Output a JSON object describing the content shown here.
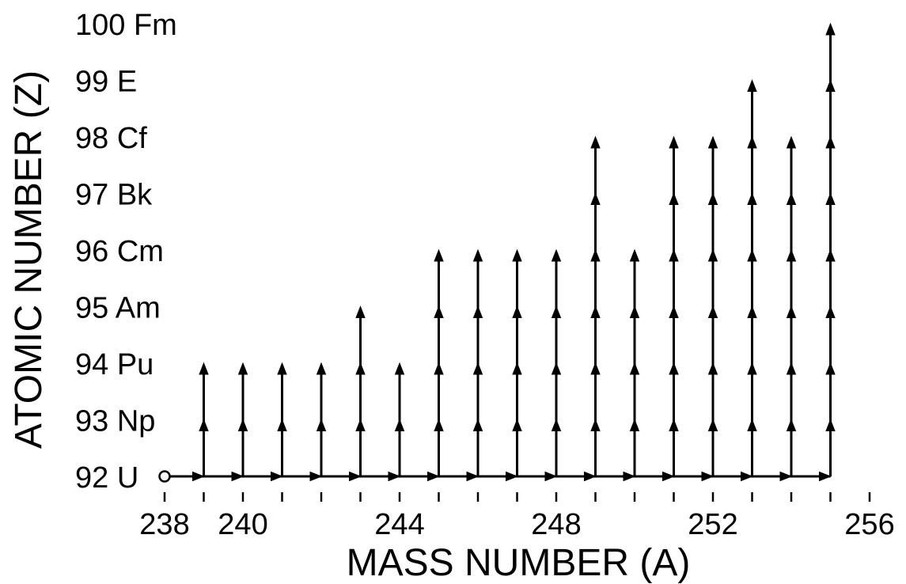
{
  "chart_data": {
    "type": "line",
    "xlabel": "MASS NUMBER (A)",
    "ylabel": "ATOMIC NUMBER (Z)",
    "xlim": [
      238,
      256
    ],
    "ylim": [
      92,
      100
    ],
    "x_tick_labels": [
      {
        "value": 238,
        "label": "238"
      },
      {
        "value": 240,
        "label": "240"
      },
      {
        "value": 244,
        "label": "244"
      },
      {
        "value": 248,
        "label": "248"
      },
      {
        "value": 252,
        "label": "252"
      },
      {
        "value": 256,
        "label": "256"
      }
    ],
    "x_minor_ticks": [
      239,
      241,
      242,
      243,
      245,
      246,
      247,
      249,
      250,
      251,
      253,
      254,
      255
    ],
    "y_tick_labels": [
      {
        "value": 92,
        "label": "92 U"
      },
      {
        "value": 93,
        "label": "93 Np"
      },
      {
        "value": 94,
        "label": "94 Pu"
      },
      {
        "value": 95,
        "label": "95 Am"
      },
      {
        "value": 96,
        "label": "96 Cm"
      },
      {
        "value": 97,
        "label": "97 Bk"
      },
      {
        "value": 98,
        "label": "98 Cf"
      },
      {
        "value": 99,
        "label": "99 E"
      },
      {
        "value": 100,
        "label": "100 Fm"
      }
    ],
    "start_point": {
      "A": 238,
      "Z": 92
    },
    "neutron_capture_path": {
      "Z": 92,
      "from_A": 238,
      "to_A": 255
    },
    "beta_decay_chains": [
      {
        "A": 239,
        "to_Z": 94
      },
      {
        "A": 240,
        "to_Z": 94
      },
      {
        "A": 241,
        "to_Z": 94
      },
      {
        "A": 242,
        "to_Z": 94
      },
      {
        "A": 243,
        "to_Z": 95
      },
      {
        "A": 244,
        "to_Z": 94
      },
      {
        "A": 245,
        "to_Z": 96
      },
      {
        "A": 246,
        "to_Z": 96
      },
      {
        "A": 247,
        "to_Z": 96
      },
      {
        "A": 248,
        "to_Z": 96
      },
      {
        "A": 249,
        "to_Z": 98
      },
      {
        "A": 250,
        "to_Z": 96
      },
      {
        "A": 251,
        "to_Z": 98
      },
      {
        "A": 252,
        "to_Z": 98
      },
      {
        "A": 253,
        "to_Z": 99
      },
      {
        "A": 254,
        "to_Z": 98
      },
      {
        "A": 255,
        "to_Z": 100
      }
    ],
    "grid": false,
    "legend": "none"
  }
}
